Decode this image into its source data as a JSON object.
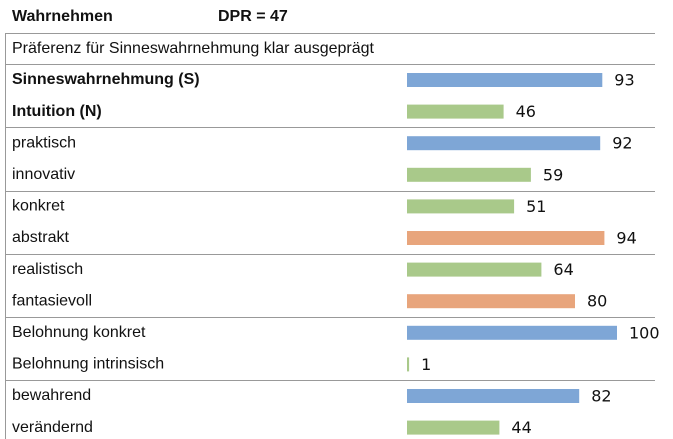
{
  "chart_data": {
    "type": "bar",
    "orientation": "horizontal",
    "title": "Wahrnehmen",
    "score": "DPR = 47",
    "subtitle": "Präferenz für Sinneswahrnehmung klar ausgeprägt",
    "categories": [
      "Sinneswahrnehmung (S)",
      "Intuition (N)",
      "praktisch",
      "innovativ",
      "konkret",
      "abstrakt",
      "realistisch",
      "fantasievoll",
      "Belohnung konkret",
      "Belohnung intrinsisch",
      "bewahrend",
      "verändernd"
    ],
    "values": [
      93,
      46,
      92,
      59,
      51,
      94,
      64,
      80,
      100,
      1,
      82,
      44
    ],
    "colors": [
      "#7ea6d6",
      "#a9c98a",
      "#7ea6d6",
      "#a9c98a",
      "#a9c98a",
      "#e8a57c",
      "#a9c98a",
      "#e8a57c",
      "#7ea6d6",
      "#a9c98a",
      "#7ea6d6",
      "#a9c98a"
    ],
    "bold": [
      true,
      true,
      false,
      false,
      false,
      false,
      false,
      false,
      false,
      false,
      false,
      false
    ],
    "xlim": [
      0,
      100
    ]
  }
}
